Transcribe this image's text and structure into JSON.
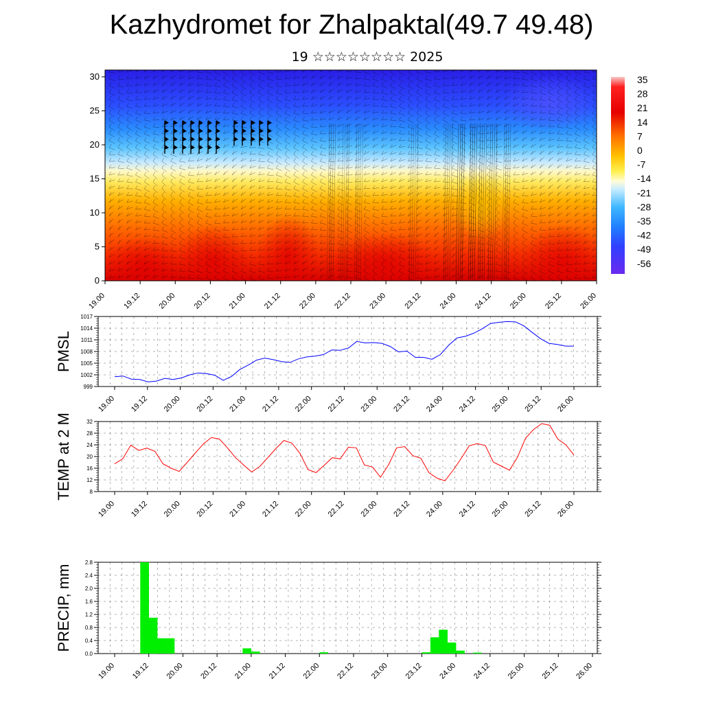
{
  "title": "Kazhydromet for Zhalpaktal(49.7 49.48)",
  "subtitle": "19 ☆☆☆☆☆☆☆☆ 2025",
  "colors": {
    "pmsl": "#0000ff",
    "temp": "#ff0000",
    "precip": "#00ee00"
  },
  "chart_data": [
    {
      "id": "cross_section",
      "type": "heatmap",
      "title": "",
      "ylabel": "",
      "x_ticks": [
        "19.00",
        "19.12",
        "20.00",
        "20.12",
        "21.00",
        "21.12",
        "22.00",
        "22.12",
        "23.00",
        "23.12",
        "24.00",
        "24.12",
        "25.00",
        "25.12",
        "26.00"
      ],
      "y_ticks": [
        "0",
        "5",
        "10",
        "15",
        "20",
        "25",
        "30"
      ],
      "ylim": [
        0,
        31
      ],
      "colorbar_labels": [
        "35",
        "28",
        "21",
        "14",
        "7",
        "0",
        "-7",
        "-14",
        "-21",
        "-28",
        "-35",
        "-42",
        "-49",
        "-56"
      ],
      "colorbar_range": [
        -60,
        38
      ],
      "description_layers": "temperature shading with wind barbs"
    },
    {
      "id": "pmsl",
      "type": "line",
      "ylabel": "PMSL",
      "y_ticks": [
        "999",
        "1002",
        "1005",
        "1008",
        "1011",
        "1014",
        "1017"
      ],
      "ylim": [
        999,
        1017
      ],
      "x_ticks": [
        "19.00",
        "19.12",
        "20.00",
        "20.12",
        "21.00",
        "21.12",
        "22.00",
        "22.12",
        "23.00",
        "23.12",
        "24.00",
        "24.12",
        "25.00",
        "25.12",
        "26.00"
      ],
      "series": [
        {
          "values": [
            1001.5,
            1001.7,
            1000.9,
            1000.8,
            1000.2,
            1000.4,
            1001.1,
            1000.8,
            1001.2,
            1002.0,
            1002.5,
            1002.3,
            1001.9,
            1000.6,
            1001.6,
            1003.4,
            1004.5,
            1005.8,
            1006.3,
            1005.9,
            1005.4,
            1005.2,
            1006.1,
            1006.6,
            1006.8,
            1007.2,
            1008.4,
            1008.3,
            1008.9,
            1010.6,
            1010.2,
            1010.3,
            1010.1,
            1009.3,
            1007.9,
            1008.1,
            1006.5,
            1006.5,
            1006.0,
            1007.2,
            1009.6,
            1011.5,
            1011.9,
            1012.7,
            1013.8,
            1015.2,
            1015.5,
            1015.7,
            1015.6,
            1014.6,
            1012.9,
            1011.3,
            1010.1,
            1009.8,
            1009.4,
            1009.4
          ]
        }
      ]
    },
    {
      "id": "temp2m",
      "type": "line",
      "ylabel": "TEMP at 2 M",
      "y_ticks": [
        "8",
        "12",
        "16",
        "20",
        "24",
        "28",
        "32"
      ],
      "ylim": [
        8,
        32
      ],
      "x_ticks": [
        "19.00",
        "19.12",
        "20.00",
        "20.12",
        "21.00",
        "21.12",
        "22.00",
        "22.12",
        "23.00",
        "23.12",
        "24.00",
        "24.12",
        "25.00",
        "25.12",
        "26.00"
      ],
      "series": [
        {
          "values": [
            17.5,
            19.2,
            23.9,
            22.1,
            22.9,
            21.8,
            17.5,
            16.0,
            14.9,
            18.0,
            21.2,
            24.3,
            26.5,
            26.0,
            23.0,
            19.6,
            17.1,
            14.7,
            16.6,
            19.6,
            22.7,
            25.5,
            24.6,
            21.1,
            15.5,
            14.5,
            17.0,
            19.6,
            19.2,
            23.2,
            23.0,
            17.1,
            16.4,
            12.9,
            17.2,
            23.0,
            23.4,
            20.3,
            19.4,
            14.5,
            12.6,
            11.7,
            15.3,
            19.3,
            23.7,
            24.4,
            23.8,
            18.1,
            16.7,
            15.3,
            19.8,
            26.3,
            29.3,
            31.3,
            30.7,
            26.0,
            24.0,
            20.5
          ]
        }
      ]
    },
    {
      "id": "precip",
      "type": "bar",
      "ylabel": "PRECIP, mm",
      "y_ticks": [
        "0.0",
        "0.4",
        "0.8",
        "1.2",
        "1.6",
        "2.0",
        "2.4",
        "2.8"
      ],
      "ylim": [
        0,
        2.8
      ],
      "x_ticks": [
        "19.00",
        "19.12",
        "20.00",
        "20.12",
        "21.00",
        "21.12",
        "22.00",
        "22.12",
        "23.00",
        "23.12",
        "24.00",
        "24.12",
        "25.00",
        "25.12",
        "26.00"
      ],
      "values": [
        0,
        0,
        0,
        2.8,
        1.1,
        0.47,
        0.47,
        0,
        0,
        0,
        0,
        0,
        0,
        0,
        0,
        0.16,
        0.06,
        0,
        0,
        0,
        0,
        0,
        0,
        0,
        0.04,
        0,
        0,
        0,
        0,
        0,
        0,
        0,
        0,
        0,
        0,
        0,
        0.04,
        0.5,
        0.73,
        0.34,
        0.09,
        0,
        0.03,
        0,
        0,
        0,
        0,
        0,
        0,
        0,
        0,
        0,
        0,
        0,
        0,
        0
      ]
    }
  ]
}
